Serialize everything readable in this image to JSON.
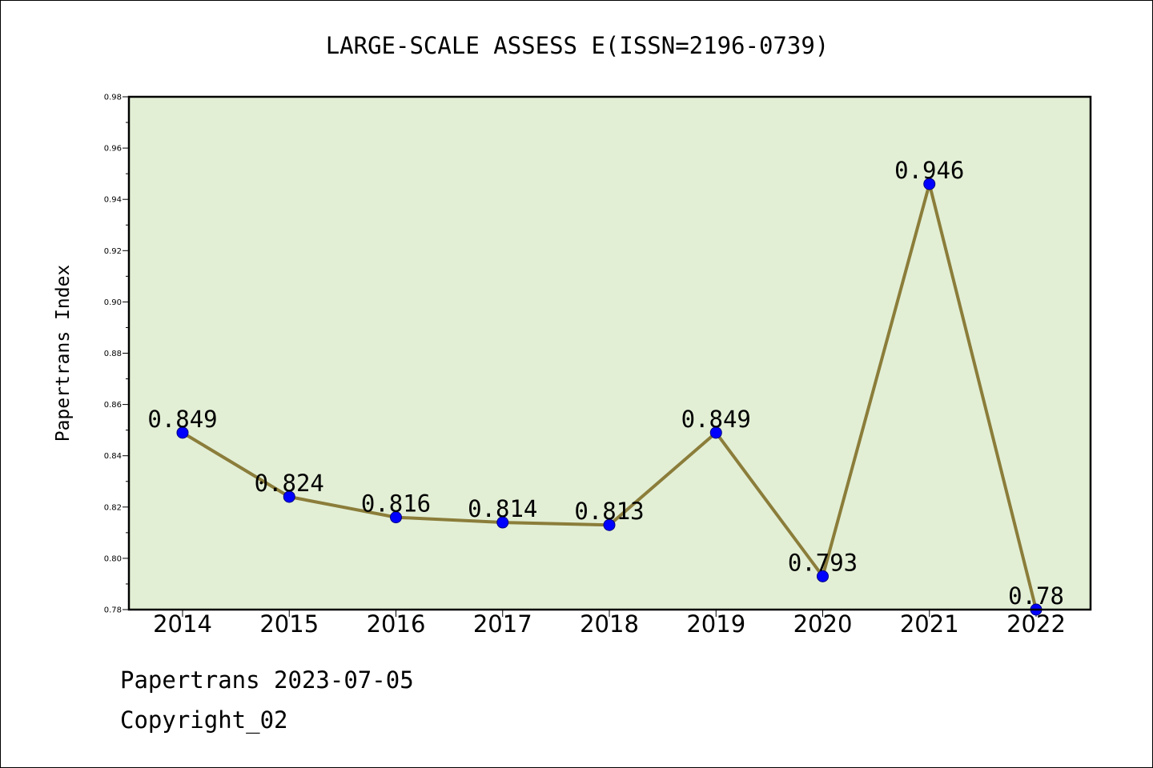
{
  "chart_data": {
    "type": "line",
    "title": "LARGE-SCALE ASSESS E(ISSN=2196-0739)",
    "ylabel": "Papertrans Index",
    "xlabel": "",
    "categories": [
      "2014",
      "2015",
      "2016",
      "2017",
      "2018",
      "2019",
      "2020",
      "2021",
      "2022"
    ],
    "values": [
      0.849,
      0.824,
      0.816,
      0.814,
      0.813,
      0.849,
      0.793,
      0.946,
      0.78
    ],
    "data_labels": [
      "0.849",
      "0.824",
      "0.816",
      "0.814",
      "0.813",
      "0.849",
      "0.793",
      "0.946",
      "0.78"
    ],
    "ylim": [
      0.78,
      0.98
    ],
    "yticks": [
      "0.78",
      "0.80",
      "0.82",
      "0.84",
      "0.86",
      "0.88",
      "0.90",
      "0.92",
      "0.94",
      "0.96",
      "0.98"
    ],
    "grid": false,
    "legend": "none",
    "colors": {
      "plot_background": "#e2efd5",
      "line": "#8b7d3a",
      "marker": "#0000ff",
      "marker_edge": "#000080"
    }
  },
  "footer": {
    "line1": "Papertrans 2023-07-05",
    "line2": "Copyright_02"
  }
}
